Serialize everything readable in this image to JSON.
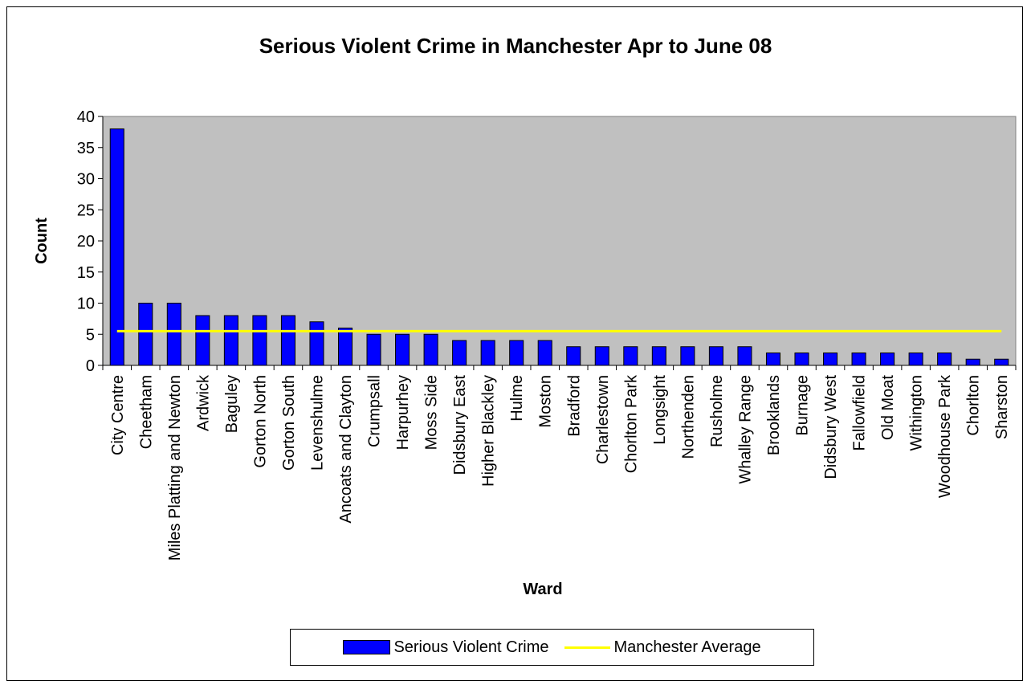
{
  "chart_data": {
    "type": "bar",
    "title": "Serious Violent Crime in Manchester Apr to June 08",
    "xlabel": "Ward",
    "ylabel": "Count",
    "ylim": [
      0,
      40
    ],
    "yticks": [
      "0",
      "5",
      "10",
      "15",
      "20",
      "25",
      "30",
      "35",
      "40"
    ],
    "grid": false,
    "legend_position": "bottom",
    "plot_background": "#c0c0c0",
    "categories": [
      "City Centre",
      "Cheetham",
      "Miles Platting and Newton",
      "Ardwick",
      "Baguley",
      "Gorton North",
      "Gorton South",
      "Levenshulme",
      "Ancoats and Clayton",
      "Crumpsall",
      "Harpurhey",
      "Moss Side",
      "Didsbury East",
      "Higher Blackley",
      "Hulme",
      "Moston",
      "Bradford",
      "Charlestown",
      "Chorlton Park",
      "Longsight",
      "Northenden",
      "Rusholme",
      "Whalley Range",
      "Brooklands",
      "Burnage",
      "Didsbury West",
      "Fallowfield",
      "Old Moat",
      "Withington",
      "Woodhouse Park",
      "Chorlton",
      "Sharston"
    ],
    "series": [
      {
        "name": "Serious Violent Crime",
        "type": "bar",
        "color": "#0000ff",
        "values": [
          38,
          10,
          10,
          8,
          8,
          8,
          8,
          7,
          6,
          5,
          5,
          5,
          4,
          4,
          4,
          4,
          3,
          3,
          3,
          3,
          3,
          3,
          3,
          2,
          2,
          2,
          2,
          2,
          2,
          2,
          1,
          1
        ]
      },
      {
        "name": "Manchester Average",
        "type": "line",
        "color": "#ffff00",
        "value": 5.5
      }
    ]
  }
}
